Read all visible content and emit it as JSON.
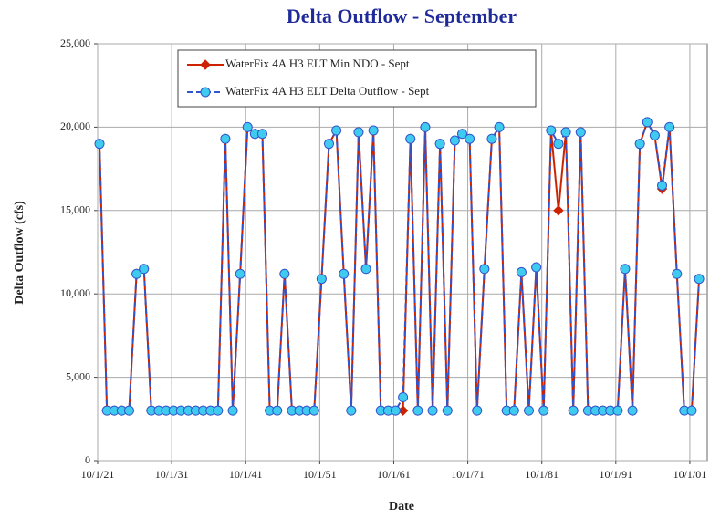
{
  "chart_data": {
    "type": "line",
    "title": "Delta Outflow -  September",
    "x_label": "Date",
    "y_label": "Delta Outflow (cfs)",
    "x": [
      1922,
      1923,
      1924,
      1925,
      1926,
      1927,
      1928,
      1929,
      1930,
      1931,
      1932,
      1933,
      1934,
      1935,
      1936,
      1937,
      1938,
      1939,
      1940,
      1941,
      1942,
      1943,
      1944,
      1945,
      1946,
      1947,
      1948,
      1949,
      1950,
      1951,
      1952,
      1953,
      1954,
      1955,
      1956,
      1957,
      1958,
      1959,
      1960,
      1961,
      1962,
      1963,
      1964,
      1965,
      1966,
      1967,
      1968,
      1969,
      1970,
      1971,
      1972,
      1973,
      1974,
      1975,
      1976,
      1977,
      1978,
      1979,
      1980,
      1981,
      1982,
      1983,
      1984,
      1985,
      1986,
      1987,
      1988,
      1989,
      1990,
      1991,
      1992,
      1993,
      1994,
      1995,
      1996,
      1997,
      1998,
      1999,
      2000,
      2001,
      2002,
      2003
    ],
    "series": [
      {
        "name": "WaterFix 4A  H3 ELT Min NDO - Sept",
        "color": "#cc2200",
        "marker": "diamond",
        "values": [
          19000,
          3000,
          3000,
          3000,
          3000,
          11200,
          11500,
          3000,
          3000,
          3000,
          3000,
          3000,
          3000,
          3000,
          3000,
          3000,
          3000,
          19300,
          3000,
          11200,
          20000,
          19600,
          19600,
          3000,
          3000,
          11200,
          3000,
          3000,
          3000,
          3000,
          10900,
          19000,
          19800,
          11200,
          3000,
          19700,
          11500,
          19800,
          3000,
          3000,
          3000,
          3000,
          19300,
          3000,
          20000,
          3000,
          19000,
          3000,
          19200,
          19600,
          19300,
          3000,
          11500,
          19300,
          20000,
          3000,
          3000,
          11300,
          3000,
          11600,
          3000,
          19800,
          15000,
          19700,
          3000,
          19700,
          3000,
          3000,
          3000,
          3000,
          3000,
          11500,
          3000,
          19000,
          20300,
          19500,
          16300,
          20000,
          11200,
          3000,
          3000,
          10900
        ]
      },
      {
        "name": "WaterFix 4A  H3 ELT Delta Outflow - Sept",
        "color": "#3355cc",
        "marker_fill": "#3ecbef",
        "marker": "circle",
        "dashed": true,
        "values": [
          19000,
          3000,
          3000,
          3000,
          3000,
          11200,
          11500,
          3000,
          3000,
          3000,
          3000,
          3000,
          3000,
          3000,
          3000,
          3000,
          3000,
          19300,
          3000,
          11200,
          20000,
          19600,
          19600,
          3000,
          3000,
          11200,
          3000,
          3000,
          3000,
          3000,
          10900,
          19000,
          19800,
          11200,
          3000,
          19700,
          11500,
          19800,
          3000,
          3000,
          3000,
          3800,
          19300,
          3000,
          20000,
          3000,
          19000,
          3000,
          19200,
          19600,
          19300,
          3000,
          11500,
          19300,
          20000,
          3000,
          3000,
          11300,
          3000,
          11600,
          3000,
          19800,
          19000,
          19700,
          3000,
          19700,
          3000,
          3000,
          3000,
          3000,
          3000,
          11500,
          3000,
          19000,
          20300,
          19500,
          16500,
          20000,
          11200,
          3000,
          3000,
          10900
        ]
      }
    ],
    "xlim": [
      1921.75,
      2004.1
    ],
    "xticks": [
      {
        "value": 1921.75,
        "label": "10/1/21"
      },
      {
        "value": 1931.75,
        "label": "10/1/31"
      },
      {
        "value": 1941.75,
        "label": "10/1/41"
      },
      {
        "value": 1951.75,
        "label": "10/1/51"
      },
      {
        "value": 1961.75,
        "label": "10/1/61"
      },
      {
        "value": 1971.75,
        "label": "10/1/71"
      },
      {
        "value": 1981.75,
        "label": "10/1/81"
      },
      {
        "value": 1991.75,
        "label": "10/1/91"
      },
      {
        "value": 2001.75,
        "label": "10/1/01"
      }
    ],
    "ylim": [
      0,
      25000
    ],
    "yticks": [
      0,
      {
        "value": 5000,
        "label": "5,000"
      },
      {
        "value": 10000,
        "label": "10,000"
      },
      {
        "value": 15000,
        "label": "15,000"
      },
      {
        "value": 20000,
        "label": "20,000"
      },
      {
        "value": 25000,
        "label": "25,000"
      }
    ],
    "grid": true,
    "legend": "upper center"
  }
}
